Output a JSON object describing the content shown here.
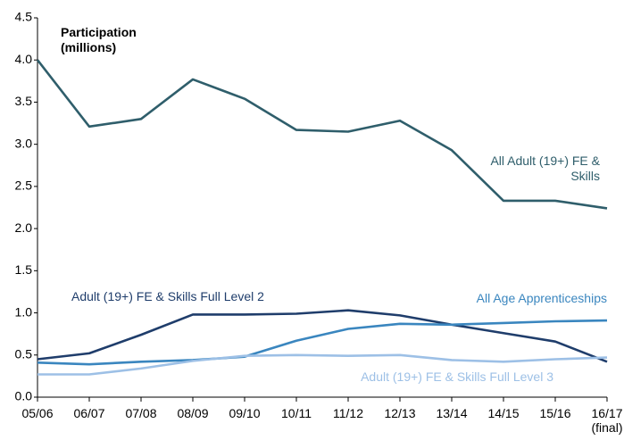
{
  "chart_data": {
    "type": "line",
    "y_axis_label": "Participation (millions)",
    "categories": [
      "05/06",
      "06/07",
      "07/08",
      "08/09",
      "09/10",
      "10/11",
      "11/12",
      "12/13",
      "13/14",
      "14/15",
      "15/16",
      "16/17 (final)"
    ],
    "series": [
      {
        "name": "All Adult (19+) FE & Skills",
        "color": "#2f5e6b",
        "values": [
          4.0,
          3.21,
          3.3,
          3.77,
          3.54,
          3.17,
          3.15,
          3.28,
          2.93,
          2.33,
          2.33,
          2.24
        ]
      },
      {
        "name": "Adult (19+) FE & Skills Full Level 2",
        "color": "#1f3d6b",
        "values": [
          0.45,
          0.52,
          0.74,
          0.98,
          0.98,
          0.99,
          1.03,
          0.97,
          0.86,
          0.76,
          0.66,
          0.42
        ]
      },
      {
        "name": "All Age Apprenticeships",
        "color": "#3a86bf",
        "values": [
          0.41,
          0.39,
          0.42,
          0.44,
          0.48,
          0.67,
          0.81,
          0.87,
          0.86,
          0.88,
          0.9,
          0.91
        ]
      },
      {
        "name": "Adult (19+) FE & Skills Full Level 3",
        "color": "#9dc0e6",
        "values": [
          0.27,
          0.27,
          0.34,
          0.43,
          0.49,
          0.5,
          0.49,
          0.5,
          0.44,
          0.42,
          0.45,
          0.47
        ]
      }
    ],
    "ylim": [
      0,
      4.5
    ],
    "yticks": [
      {
        "value": 0,
        "label": "0.0"
      },
      0.5,
      {
        "value": 1,
        "label": "1.0"
      },
      1.5,
      {
        "value": 2,
        "label": "2.0"
      },
      2.5,
      {
        "value": 3,
        "label": "3.0"
      },
      3.5,
      {
        "value": 4,
        "label": "4.0"
      },
      4.5
    ],
    "grid": false
  }
}
